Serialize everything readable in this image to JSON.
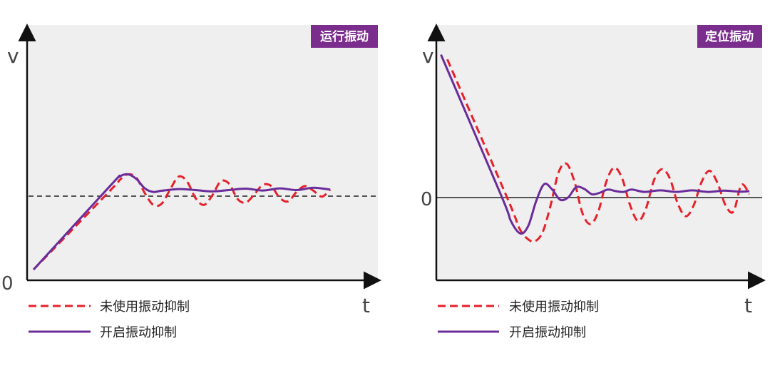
{
  "colors": {
    "panel_bg": "#efefef",
    "axis": "#111111",
    "dashed_series": "#e8202a",
    "solid_series": "#6a2c9a",
    "badge_bg": "#7b2d8e",
    "badge_text": "#ffffff",
    "reference_line": "#222222"
  },
  "chart_data": [
    {
      "type": "line",
      "title": "运行振动",
      "xlabel": "t",
      "ylabel": "v",
      "y_origin_label": "0",
      "xlim": [
        0,
        10
      ],
      "ylim": [
        0,
        10
      ],
      "reference_line": {
        "y": 3.4,
        "style": "dashed"
      },
      "series": [
        {
          "name": "未使用振动抑制",
          "style": "dashed",
          "color": "#e8202a",
          "x": [
            0.0,
            2.3,
            2.55,
            2.8,
            3.05,
            3.3,
            3.55,
            3.8,
            4.05,
            4.3,
            4.55,
            4.8,
            5.05,
            5.3,
            5.55,
            5.8,
            6.05,
            6.3,
            6.55,
            6.8,
            7.05,
            7.3,
            7.55,
            7.8,
            8.05,
            8.3,
            8.55,
            8.8
          ],
          "y": [
            0.0,
            3.4,
            3.8,
            4.05,
            3.9,
            3.25,
            2.75,
            2.8,
            3.4,
            3.95,
            3.75,
            3.05,
            2.75,
            3.15,
            3.75,
            3.65,
            3.0,
            2.85,
            3.2,
            3.6,
            3.55,
            3.05,
            2.9,
            3.3,
            3.55,
            3.35,
            3.1,
            3.4
          ]
        },
        {
          "name": "开启振动抑制",
          "style": "solid",
          "color": "#6a2c9a",
          "x": [
            0.0,
            2.3,
            2.55,
            2.8,
            3.05,
            3.3,
            3.55,
            3.8,
            4.3,
            4.8,
            5.3,
            5.8,
            6.3,
            6.8,
            7.3,
            7.8,
            8.3,
            8.8
          ],
          "y": [
            0.0,
            3.6,
            3.95,
            4.05,
            3.85,
            3.45,
            3.3,
            3.35,
            3.42,
            3.38,
            3.32,
            3.38,
            3.44,
            3.36,
            3.45,
            3.38,
            3.48,
            3.4
          ]
        }
      ]
    },
    {
      "type": "line",
      "title": "定位振动",
      "xlabel": "t",
      "ylabel": "v",
      "y_zero_label": "0",
      "xlim": [
        0,
        10
      ],
      "ylim": [
        -5,
        10
      ],
      "reference_line": {
        "y": 0,
        "style": "solid"
      },
      "series": [
        {
          "name": "未使用振动抑制",
          "style": "dashed",
          "color": "#e8202a",
          "x": [
            0.3,
            2.2,
            2.55,
            2.8,
            3.05,
            3.3,
            3.55,
            3.8,
            4.05,
            4.3,
            4.55,
            4.8,
            5.05,
            5.3,
            5.55,
            5.8,
            6.05,
            6.3,
            6.55,
            6.8,
            7.05,
            7.3,
            7.55,
            7.8,
            8.05,
            8.3,
            8.55,
            8.8,
            9.05,
            9.3,
            9.55,
            9.8
          ],
          "y": [
            8.4,
            -0.5,
            -2.3,
            -3.0,
            -3.2,
            -2.6,
            -0.9,
            1.2,
            1.75,
            0.6,
            -1.4,
            -2.1,
            -1.3,
            0.6,
            1.5,
            0.8,
            -0.9,
            -1.9,
            -1.1,
            0.7,
            1.4,
            0.8,
            -0.8,
            -1.6,
            -0.9,
            0.6,
            1.3,
            0.5,
            -0.9,
            -1.3,
            0.4,
            -0.2
          ]
        },
        {
          "name": "开启振动抑制",
          "style": "solid",
          "color": "#6a2c9a",
          "x": [
            0.1,
            2.0,
            2.3,
            2.6,
            2.85,
            3.1,
            3.35,
            3.6,
            3.85,
            4.1,
            4.35,
            4.6,
            4.85,
            5.1,
            5.35,
            5.6,
            5.85,
            6.1,
            6.5,
            7.0,
            7.5,
            8.0,
            8.5,
            9.0,
            9.5,
            9.8
          ],
          "y": [
            8.7,
            -0.3,
            -1.9,
            -2.7,
            -2.2,
            -0.6,
            0.45,
            0.1,
            -0.55,
            -0.4,
            0.25,
            0.15,
            -0.2,
            -0.1,
            0.1,
            0.0,
            -0.05,
            0.1,
            -0.05,
            0.05,
            -0.05,
            0.05,
            -0.05,
            0.03,
            -0.03,
            0.0
          ]
        }
      ]
    }
  ]
}
